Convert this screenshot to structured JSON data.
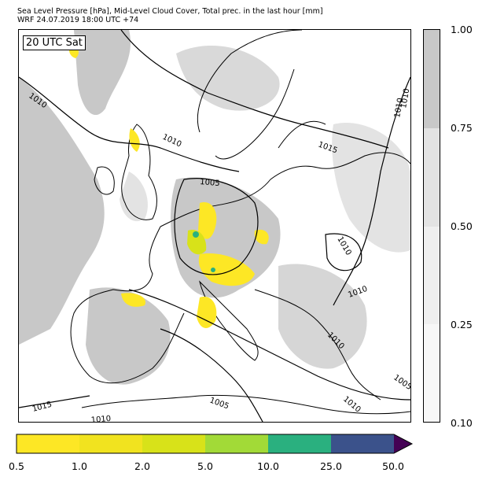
{
  "title": {
    "line1": "Sea Level Pressure [hPa], Mid-Level Cloud Cover, Total prec. in the last hour [mm]",
    "line2": "WRF 24.07.2019 18:00 UTC +74"
  },
  "time_label": "20 UTC Sat",
  "cloud_colorbar": {
    "labels": [
      "1.00",
      "0.75",
      "0.50",
      "0.25",
      "0.10"
    ],
    "colors": [
      "#c8c8c8",
      "#e3e3e3",
      "#efefef",
      "#f7f7f7"
    ]
  },
  "precip_colorbar": {
    "labels": [
      "0.5",
      "1.0",
      "2.0",
      "5.0",
      "10.0",
      "25.0",
      "50.0"
    ],
    "colors": [
      "#fde725",
      "#f1e31f",
      "#d8e219",
      "#a2da37",
      "#2ab07f",
      "#3b528b",
      "#440154"
    ]
  },
  "isobar_labels": [
    "1010",
    "1010",
    "1010",
    "1015",
    "1005",
    "1010",
    "1010",
    "1010",
    "1005",
    "1010",
    "1015",
    "1010",
    "1005",
    "1010"
  ],
  "colors": {
    "frame": "#000000",
    "sea": "#ffffff",
    "cloud_dark": "#c8c8c8",
    "cloud_light": "#e3e3e3"
  }
}
